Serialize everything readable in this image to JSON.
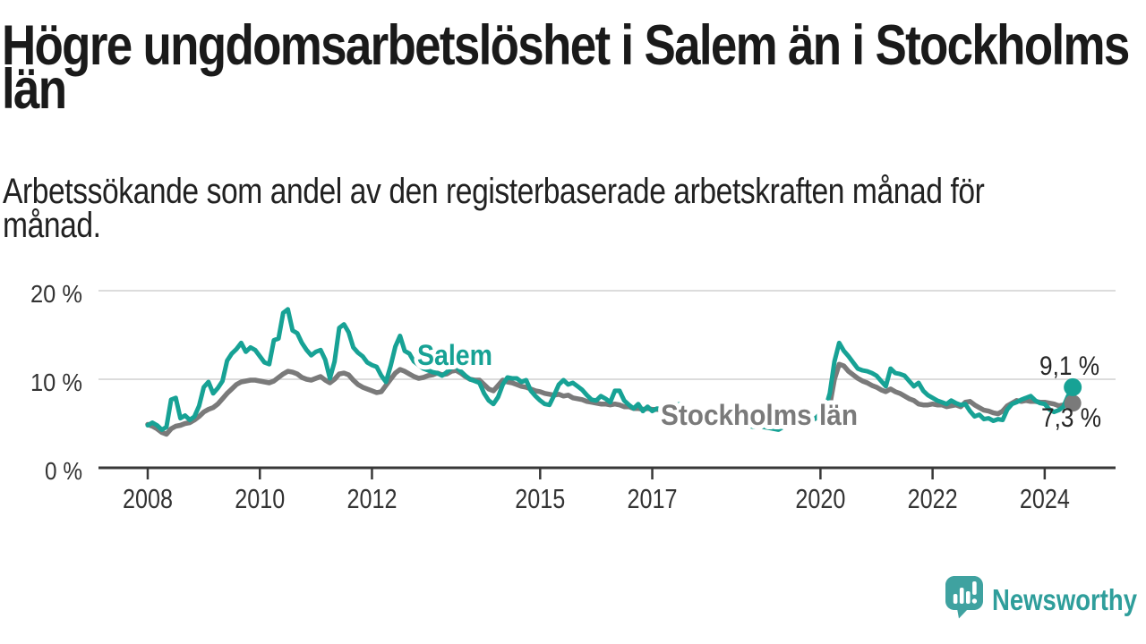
{
  "header": {
    "title": "Högre ungdomsarbetslöshet i Salem än i Stockholms län",
    "title_lines": [
      "Högre ungdomsarbetslöshet i Salem än i Stockholms",
      "län"
    ],
    "subtitle": "Arbetssökande som andel av den registerbaserade arbetskraften månad för månad.",
    "subtitle_lines": [
      "Arbetssökande som andel av den registerbaserade arbetskraften månad för",
      "månad."
    ]
  },
  "chart_data": {
    "type": "line",
    "frequency": "monthly",
    "x_start": "2008-01",
    "x_end": "2024-07",
    "unit": "%",
    "ylim": [
      0,
      20
    ],
    "grid": "horizontal",
    "legend": "inline-labels",
    "y_ticks": [
      {
        "value": 0,
        "label": "0 %"
      },
      {
        "value": 10,
        "label": "10 %"
      },
      {
        "value": 20,
        "label": "20 %"
      }
    ],
    "x_ticks": [
      {
        "year": 2008,
        "label": "2008"
      },
      {
        "year": 2010,
        "label": "2010"
      },
      {
        "year": 2012,
        "label": "2012"
      },
      {
        "year": 2015,
        "label": "2015"
      },
      {
        "year": 2017,
        "label": "2017"
      },
      {
        "year": 2020,
        "label": "2020"
      },
      {
        "year": 2022,
        "label": "2022"
      },
      {
        "year": 2024,
        "label": "2024"
      }
    ],
    "series": [
      {
        "name": "Salem",
        "color": "#17a295",
        "end_label": "9,1 %",
        "end_value": 9.1,
        "values": [
          4.8,
          5.1,
          4.8,
          4.3,
          4.6,
          7.7,
          7.9,
          5.6,
          5.9,
          5.4,
          5.8,
          7.0,
          9.1,
          9.7,
          8.4,
          9.0,
          9.8,
          12.1,
          12.9,
          13.4,
          14.1,
          13.1,
          13.6,
          13.3,
          12.6,
          11.9,
          11.7,
          14.4,
          14.6,
          17.5,
          17.9,
          15.5,
          15.2,
          14.1,
          13.3,
          12.7,
          13.1,
          13.3,
          12.2,
          10.1,
          12.0,
          15.8,
          16.2,
          15.3,
          13.6,
          13.0,
          12.6,
          11.9,
          11.6,
          11.4,
          10.4,
          9.7,
          11.5,
          13.7,
          14.9,
          13.2,
          12.9,
          12.0,
          11.6,
          11.2,
          11.0,
          10.8,
          10.7,
          10.4,
          10.8,
          11.3,
          11.4,
          10.9,
          10.4,
          10.0,
          9.8,
          9.6,
          8.4,
          7.6,
          7.2,
          8.0,
          9.4,
          10.2,
          10.1,
          10.1,
          9.7,
          9.9,
          8.7,
          8.1,
          7.6,
          7.2,
          7.1,
          8.2,
          9.4,
          9.9,
          9.4,
          9.6,
          9.2,
          8.8,
          8.2,
          7.7,
          7.6,
          8.1,
          7.8,
          7.4,
          8.7,
          8.7,
          7.6,
          7.1,
          6.7,
          7.2,
          6.4,
          6.9,
          6.4,
          6.7,
          6.6,
          6.2,
          6.5,
          7.1,
          7.2,
          6.5,
          6.1,
          5.9,
          5.7,
          5.6,
          5.4,
          5.2,
          5.0,
          4.8,
          5.0,
          5.6,
          5.8,
          5.2,
          4.9,
          4.7,
          4.6,
          4.7,
          4.6,
          4.5,
          4.4,
          4.3,
          4.6,
          5.2,
          5.4,
          4.9,
          4.8,
          5.0,
          5.3,
          5.6,
          6.2,
          6.6,
          8.4,
          12.0,
          14.1,
          13.2,
          12.6,
          11.9,
          11.2,
          11.0,
          10.9,
          10.7,
          10.4,
          9.8,
          9.2,
          11.2,
          10.7,
          10.6,
          10.4,
          9.8,
          9.2,
          9.6,
          8.7,
          8.2,
          7.9,
          7.6,
          7.4,
          7.2,
          7.6,
          7.3,
          7.1,
          7.2,
          6.4,
          5.8,
          6.0,
          5.5,
          5.6,
          5.3,
          5.5,
          5.4,
          6.6,
          7.2,
          7.4,
          7.7,
          7.9,
          8.1,
          7.6,
          7.3,
          7.2,
          6.6,
          6.3,
          6.5,
          6.9,
          8.1,
          9.1
        ]
      },
      {
        "name": "Stockholms län",
        "color": "#7a7a7a",
        "end_label": "7,3 %",
        "end_value": 7.3,
        "values": [
          4.9,
          4.7,
          4.4,
          4.0,
          3.8,
          4.4,
          4.7,
          4.8,
          5.0,
          5.1,
          5.4,
          5.8,
          6.3,
          6.6,
          6.8,
          7.2,
          7.8,
          8.4,
          8.9,
          9.4,
          9.7,
          9.8,
          9.9,
          9.9,
          9.8,
          9.7,
          9.6,
          9.8,
          10.2,
          10.6,
          10.9,
          10.8,
          10.6,
          10.2,
          10.0,
          9.9,
          10.1,
          10.3,
          9.9,
          9.6,
          10.0,
          10.6,
          10.7,
          10.5,
          9.9,
          9.4,
          9.1,
          8.9,
          8.7,
          8.5,
          8.6,
          9.3,
          10.0,
          10.7,
          11.1,
          10.9,
          10.6,
          10.3,
          10.1,
          10.2,
          10.4,
          10.5,
          10.7,
          10.5,
          10.6,
          10.9,
          11.0,
          10.7,
          10.3,
          10.0,
          9.9,
          9.9,
          9.4,
          8.9,
          8.7,
          9.3,
          9.9,
          9.7,
          9.6,
          9.4,
          9.2,
          9.1,
          8.9,
          8.7,
          8.6,
          8.4,
          8.3,
          8.2,
          8.3,
          8.1,
          8.2,
          7.9,
          7.8,
          7.7,
          7.5,
          7.4,
          7.3,
          7.2,
          7.2,
          7.1,
          7.2,
          7.1,
          6.9,
          6.9,
          6.7,
          6.7,
          6.6,
          6.7,
          6.6,
          6.6,
          6.5,
          6.4,
          6.4,
          6.4,
          6.3,
          6.2,
          6.0,
          5.9,
          5.8,
          5.8,
          5.7,
          5.6,
          5.5,
          5.4,
          5.4,
          5.5,
          5.5,
          5.4,
          5.2,
          5.1,
          5.1,
          5.2,
          5.2,
          5.1,
          5.1,
          5.0,
          5.1,
          5.3,
          5.4,
          5.3,
          5.2,
          5.3,
          5.4,
          5.6,
          6.0,
          6.3,
          7.1,
          10.0,
          11.7,
          11.5,
          10.9,
          10.5,
          10.1,
          9.8,
          9.6,
          9.3,
          9.1,
          8.8,
          8.6,
          8.9,
          8.6,
          8.4,
          8.1,
          7.8,
          7.6,
          7.2,
          7.1,
          7.1,
          7.2,
          7.1,
          7.1,
          6.9,
          7.0,
          7.1,
          6.9,
          7.4,
          7.5,
          7.1,
          6.8,
          6.5,
          6.4,
          6.2,
          6.1,
          6.4,
          7.0,
          7.3,
          7.6,
          7.5,
          7.6,
          7.5,
          7.5,
          7.4,
          7.4,
          7.3,
          7.2,
          7.0,
          7.1,
          7.2,
          7.3
        ]
      }
    ]
  },
  "colors": {
    "salem": "#17a295",
    "stockholm": "#7a7a7a",
    "grid": "#dcdcdc",
    "axis": "#383838",
    "axis_text": "#333333",
    "title_text": "#1a1a1a",
    "value_label_text": "#262626",
    "brand_icon": "#3fa2a0",
    "brand_text": "#2f9e9b",
    "background": "#ffffff"
  },
  "footer": {
    "brand": "Newsworthy"
  }
}
